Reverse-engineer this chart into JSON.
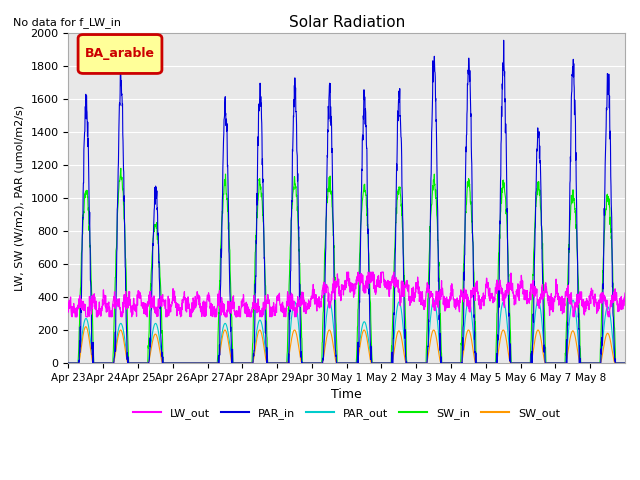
{
  "title": "Solar Radiation",
  "subtitle": "No data for f_LW_in",
  "xlabel": "Time",
  "ylabel": "LW, SW (W/m2), PAR (umol/m2/s)",
  "ylim": [
    0,
    2000
  ],
  "legend_label": "BA_arable",
  "legend_bg": "#ffff99",
  "legend_border": "#cc0000",
  "series_colors": {
    "LW_out": "#ff00ff",
    "PAR_in": "#0000dd",
    "PAR_out": "#00cccc",
    "SW_in": "#00ee00",
    "SW_out": "#ff9900"
  },
  "tick_labels": [
    "Apr 23",
    "Apr 24",
    "Apr 25",
    "Apr 26",
    "Apr 27",
    "Apr 28",
    "Apr 29",
    "Apr 30",
    "May 1",
    "May 2",
    "May 3",
    "May 4",
    "May 5",
    "May 6",
    "May 7",
    "May 8"
  ],
  "n_days": 16,
  "plot_bg": "#e8e8e8",
  "grid_color": "#ffffff",
  "PAR_in_peaks": [
    1580,
    1720,
    1050,
    0,
    1550,
    1640,
    1660,
    1660,
    1600,
    1620,
    1820,
    1830,
    1800,
    1400,
    1800,
    1720
  ],
  "SW_in_peaks": [
    1040,
    1140,
    840,
    0,
    1090,
    1080,
    1090,
    1090,
    1060,
    1060,
    1090,
    1080,
    1080,
    1060,
    1020,
    1000
  ],
  "PAR_out_peaks": [
    270,
    240,
    240,
    0,
    240,
    260,
    370,
    370,
    250,
    370,
    380,
    380,
    370,
    380,
    380,
    340
  ],
  "SW_out_peaks": [
    220,
    200,
    175,
    0,
    200,
    200,
    200,
    200,
    200,
    195,
    200,
    200,
    200,
    200,
    195,
    180
  ]
}
